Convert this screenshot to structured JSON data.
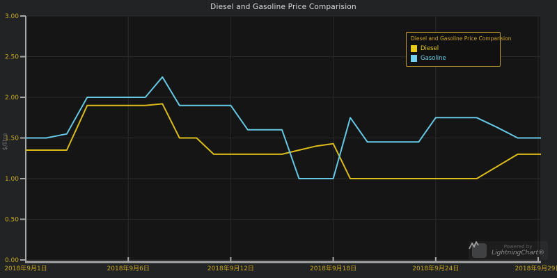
{
  "page": {
    "title": "Diesel and Gasoline Price Comparision"
  },
  "legend": {
    "title": "Diesel and Gasoline Price Comparision",
    "items": [
      {
        "label": "Diesel",
        "color": "#e8cb16"
      },
      {
        "label": "Gasoline",
        "color": "#74d2ee"
      }
    ]
  },
  "watermark": {
    "powered_by": "Powered by",
    "brand": "LightningChart®"
  },
  "colors": {
    "background": "#222324",
    "plot_background": "#151515",
    "grid": "#2b2b2b",
    "axis": "#a8a8a8",
    "tick_label": "#c7a91c",
    "title": "#dcdcdc"
  },
  "chart_data": {
    "type": "line",
    "title": "Diesel and Gasoline Price Comparision",
    "xlabel": "",
    "ylabel": "$/litre",
    "ylim": [
      0,
      3
    ],
    "grid": true,
    "legend_position": "top-right",
    "y_ticks": [
      {
        "v": 3.0,
        "label": "3.00"
      },
      {
        "v": 2.5,
        "label": "2.50"
      },
      {
        "v": 2.0,
        "label": "2.00"
      },
      {
        "v": 1.5,
        "label": "1.50"
      },
      {
        "v": 1.0,
        "label": "1.00"
      },
      {
        "v": 0.5,
        "label": "0.50"
      },
      {
        "v": 0.0,
        "label": "0.00"
      }
    ],
    "x_ticks": [
      {
        "day": 1,
        "label": "2018年9月1日"
      },
      {
        "day": 6,
        "label": "2018年9月6日"
      },
      {
        "day": 12,
        "label": "2018年9月12日"
      },
      {
        "day": 18,
        "label": "2018年9月18日"
      },
      {
        "day": 24,
        "label": "2018年9月24日"
      },
      {
        "day": 29,
        "label": "2018年9月29日"
      }
    ],
    "x_unit": "day of September 2018",
    "days": [
      1,
      2,
      3,
      4,
      5,
      6,
      7,
      8,
      9,
      10,
      11,
      12,
      13,
      14,
      15,
      16,
      17,
      18,
      19,
      20,
      21,
      22,
      23,
      24,
      25,
      26,
      27,
      28,
      29,
      30
    ],
    "series": [
      {
        "name": "Diesel",
        "color": "#dcbc1a",
        "values": [
          1.35,
          1.35,
          1.35,
          1.9,
          1.9,
          1.9,
          1.9,
          1.92,
          1.5,
          1.5,
          1.3,
          1.3,
          1.3,
          1.3,
          1.3,
          1.35,
          1.4,
          1.43,
          1.0,
          1.0,
          1.0,
          1.0,
          1.0,
          1.0,
          1.0,
          1.0,
          1.15,
          1.3,
          1.3,
          1.3
        ]
      },
      {
        "name": "Gasoline",
        "color": "#66c8e4",
        "values": [
          1.5,
          1.5,
          1.55,
          2.0,
          2.0,
          2.0,
          2.0,
          2.25,
          1.9,
          1.9,
          1.9,
          1.9,
          1.6,
          1.6,
          1.6,
          1.0,
          1.0,
          1.0,
          1.75,
          1.45,
          1.45,
          1.45,
          1.45,
          1.75,
          1.75,
          1.75,
          1.63,
          1.5,
          1.5,
          1.5
        ]
      }
    ]
  }
}
